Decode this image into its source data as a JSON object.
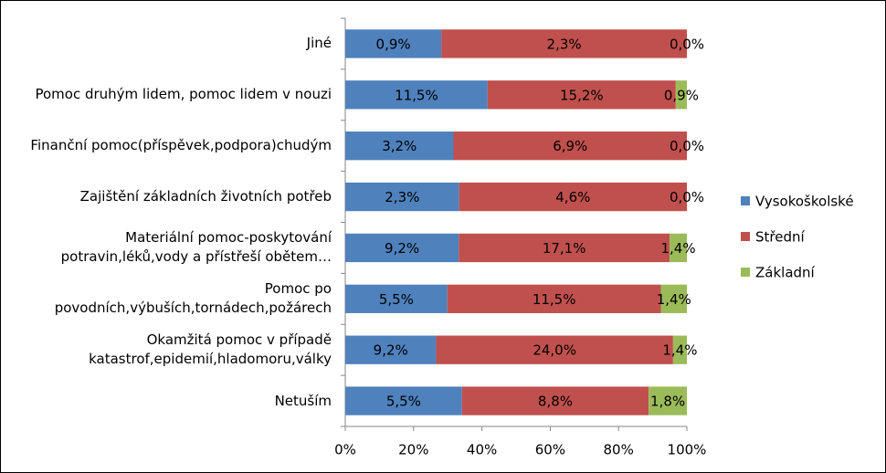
{
  "chart_data": {
    "type": "bar",
    "orientation": "horizontal",
    "stacked": "percent",
    "categories": [
      "Jiné",
      "Pomoc druhým lidem, pomoc lidem v nouzi",
      "Finanční pomoc(příspěvek,podpora)chudým",
      "Zajištění základních životních potřeb",
      "Materiální pomoc-poskytování potravin,léků,vody a přístřeší obětem…",
      "Pomoc po povodních,výbuších,tornádech,požárech",
      "Okamžitá pomoc v případě katastrof,epidemií,hladomoru,války",
      "Netuším"
    ],
    "series": [
      {
        "name": "Vysokoškolské",
        "color": "#4f81bd",
        "values": [
          0.9,
          11.5,
          3.2,
          2.3,
          9.2,
          5.5,
          9.2,
          5.5
        ],
        "value_labels": [
          "0,9%",
          "11,5%",
          "3,2%",
          "2,3%",
          "9,2%",
          "5,5%",
          "9,2%",
          "5,5%"
        ]
      },
      {
        "name": "Střední",
        "color": "#c0504d",
        "values": [
          2.3,
          15.2,
          6.9,
          4.6,
          17.1,
          11.5,
          24.0,
          8.8
        ],
        "value_labels": [
          "2,3%",
          "15,2%",
          "6,9%",
          "4,6%",
          "17,1%",
          "11,5%",
          "24,0%",
          "8,8%"
        ]
      },
      {
        "name": "Základní",
        "color": "#9bbb59",
        "values": [
          0.0,
          0.9,
          0.0,
          0.0,
          1.4,
          1.4,
          1.4,
          1.8
        ],
        "value_labels": [
          "0,0%",
          "0,9%",
          "0,0%",
          "0,0%",
          "1,4%",
          "1,4%",
          "1,4%",
          "1,8%"
        ]
      }
    ],
    "xlim": [
      0,
      100
    ],
    "xticks": [
      {
        "value": 0,
        "label": "0%"
      },
      {
        "value": 20,
        "label": "20%"
      },
      {
        "value": 40,
        "label": "40%"
      },
      {
        "value": 60,
        "label": "60%"
      },
      {
        "value": 80,
        "label": "80%"
      },
      {
        "value": 100,
        "label": "100%"
      }
    ],
    "legend": "right"
  }
}
